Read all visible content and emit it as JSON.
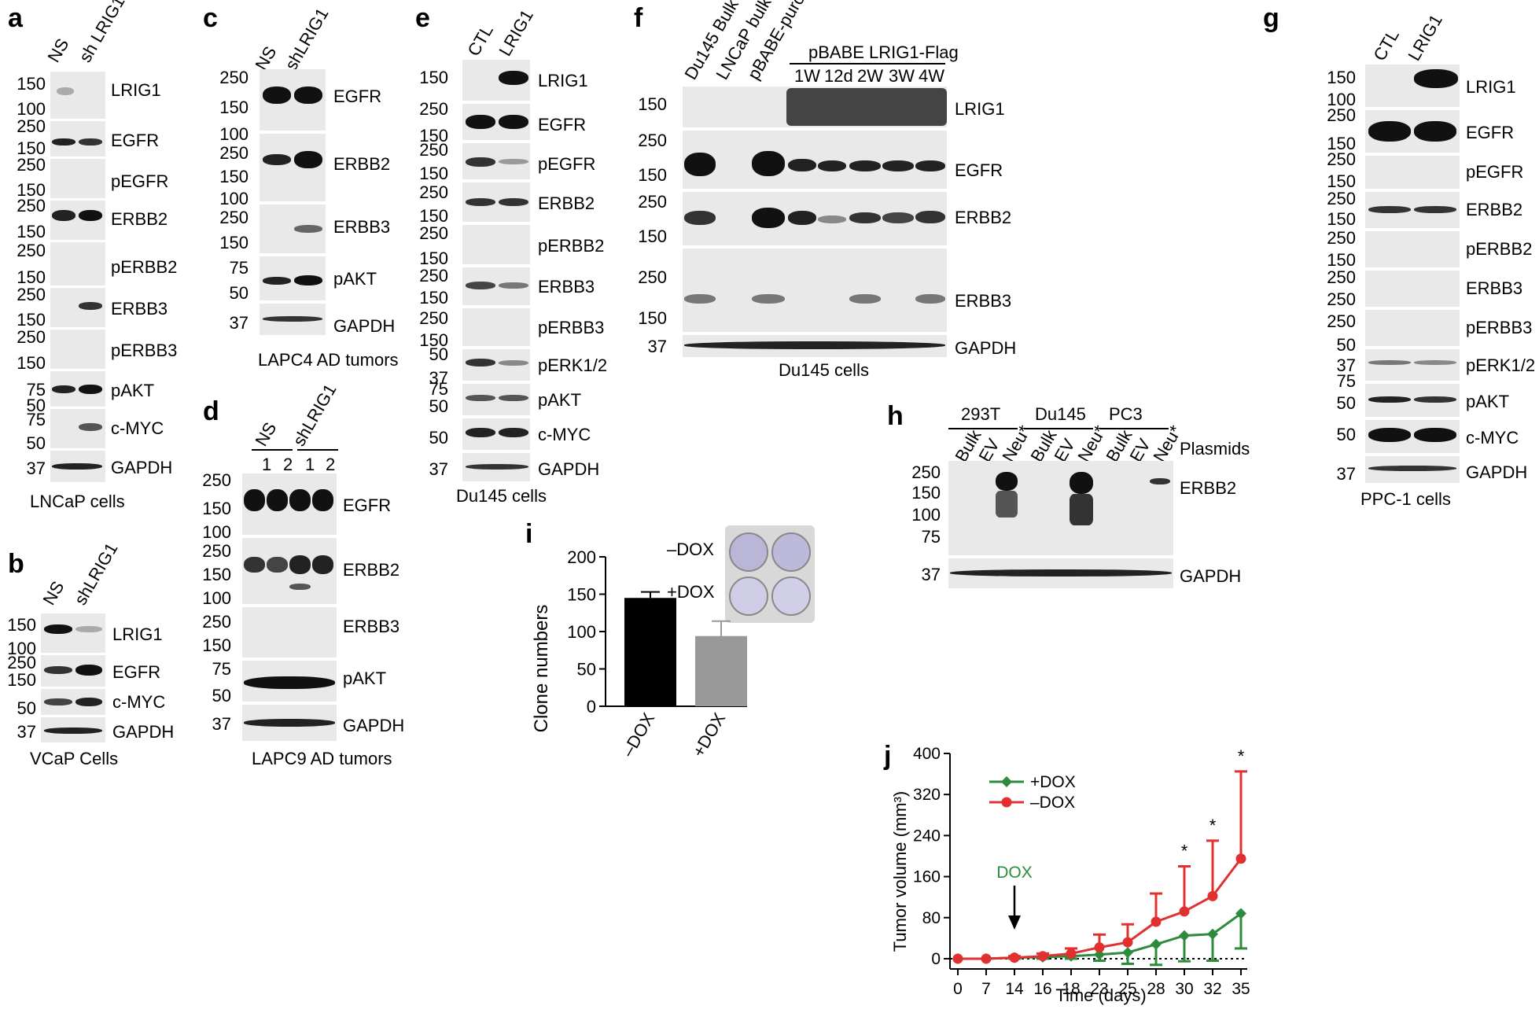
{
  "panels": {
    "a": {
      "label": "a",
      "lanes": [
        "NS",
        "sh LRIG1"
      ],
      "caption": "LNCaP cells",
      "mw": [
        "150",
        "100",
        "250",
        "150",
        "250",
        "150",
        "250",
        "150",
        "250",
        "150",
        "250",
        "150",
        "250",
        "150",
        "75",
        "50",
        "75",
        "50",
        "37"
      ],
      "proteins": [
        "LRIG1",
        "EGFR",
        "pEGFR",
        "ERBB2",
        "pERBB2",
        "ERBB3",
        "pERBB3",
        "pAKT",
        "c-MYC",
        "GAPDH"
      ]
    },
    "b": {
      "label": "b",
      "lanes": [
        "NS",
        "shLRIG1"
      ],
      "caption": "VCaP Cells",
      "mw": [
        "150",
        "100",
        "250",
        "150",
        "50",
        "37"
      ],
      "proteins": [
        "LRIG1",
        "EGFR",
        "c-MYC",
        "GAPDH"
      ]
    },
    "c": {
      "label": "c",
      "lanes": [
        "NS",
        "shLRIG1"
      ],
      "caption": "LAPC4 AD tumors",
      "mw": [
        "250",
        "150",
        "100",
        "250",
        "150",
        "100",
        "250",
        "150",
        "75",
        "50",
        "37"
      ],
      "proteins": [
        "EGFR",
        "ERBB2",
        "ERBB3",
        "pAKT",
        "GAPDH"
      ]
    },
    "d": {
      "label": "d",
      "groups": [
        "NS",
        "shLRIG1"
      ],
      "lanes": [
        "1",
        "2",
        "1",
        "2"
      ],
      "caption": "LAPC9 AD tumors",
      "mw": [
        "250",
        "150",
        "100",
        "250",
        "150",
        "100",
        "250",
        "150",
        "75",
        "50",
        "37"
      ],
      "proteins": [
        "EGFR",
        "ERBB2",
        "ERBB3",
        "pAKT",
        "GAPDH"
      ]
    },
    "e": {
      "label": "e",
      "lanes": [
        "CTL",
        "LRIG1"
      ],
      "caption": "Du145 cells",
      "mw": [
        "150",
        "250",
        "150",
        "250",
        "150",
        "250",
        "150",
        "250",
        "150",
        "250",
        "150",
        "250",
        "150",
        "50",
        "37",
        "75",
        "50",
        "50",
        "37"
      ],
      "proteins": [
        "LRIG1",
        "EGFR",
        "pEGFR",
        "ERBB2",
        "pERBB2",
        "ERBB3",
        "pERBB3",
        "pERK1/2",
        "pAKT",
        "c-MYC",
        "GAPDH"
      ]
    },
    "f": {
      "label": "f",
      "lanes": [
        "Du145 Bulk",
        "LNCaP bulk",
        "pBABE-puro"
      ],
      "group": "pBABE LRIG1-Flag",
      "group_lanes": [
        "1W",
        "12d",
        "2W",
        "3W",
        "4W"
      ],
      "caption": "Du145 cells",
      "mw": [
        "150",
        "250",
        "150",
        "250",
        "150",
        "250",
        "150",
        "37"
      ],
      "proteins": [
        "LRIG1",
        "EGFR",
        "ERBB2",
        "ERBB3",
        "GAPDH"
      ]
    },
    "g": {
      "label": "g",
      "lanes": [
        "CTL",
        "LRIG1"
      ],
      "caption": "PPC-1 cells",
      "mw": [
        "150",
        "100",
        "250",
        "150",
        "250",
        "150",
        "250",
        "150",
        "250",
        "150",
        "250",
        "50",
        "37",
        "75",
        "50",
        "50",
        "37"
      ],
      "proteins": [
        "LRIG1",
        "EGFR",
        "pEGFR",
        "ERBB2",
        "pERBB2",
        "ERBB3",
        "pERBB3",
        "pERK1/2",
        "pAKT",
        "c-MYC",
        "GAPDH"
      ]
    },
    "h": {
      "label": "h",
      "cells": [
        "293T",
        "Du145",
        "PC3"
      ],
      "lanes": [
        "Bulk",
        "EV",
        "Neu*",
        "Bulk",
        "EV",
        "Neu*",
        "Bulk",
        "EV",
        "Neu*"
      ],
      "row_label": "Plasmids",
      "mw": [
        "250",
        "150",
        "100",
        "75",
        "37"
      ],
      "proteins": [
        "ERBB2",
        "GAPDH"
      ]
    },
    "i": {
      "label": "i",
      "insert_labels": [
        "–DOX",
        "+DOX"
      ]
    },
    "j": {
      "label": "j",
      "dox_annotation": "DOX",
      "star": "*"
    }
  },
  "chart_data": [
    {
      "type": "bar",
      "panel": "i",
      "categories": [
        "–DOX",
        "+DOX"
      ],
      "values": [
        145,
        94
      ],
      "errors": [
        8,
        20
      ],
      "colors": [
        "#000000",
        "#999999"
      ],
      "ylabel": "Clone numbers",
      "ylim": [
        0,
        200
      ],
      "yticks": [
        "0",
        "50",
        "100",
        "150",
        "200"
      ]
    },
    {
      "type": "line",
      "panel": "j",
      "x": [
        0,
        7,
        14,
        16,
        18,
        23,
        25,
        28,
        30,
        32,
        35
      ],
      "xticks": [
        "0",
        "7",
        "14",
        "16",
        "18",
        "23",
        "25",
        "28",
        "30",
        "32",
        "35"
      ],
      "xlabel": "Time (days)",
      "ylabel": "Tumor volume (mm³)",
      "ylim": [
        -20,
        400
      ],
      "yticks": [
        "0",
        "80",
        "160",
        "240",
        "320",
        "400"
      ],
      "series": [
        {
          "name": "+DOX",
          "color": "#2e8b3e",
          "values": [
            0,
            0,
            2,
            3,
            5,
            8,
            12,
            28,
            45,
            48,
            88
          ],
          "errors": [
            0,
            0,
            2,
            3,
            5,
            12,
            22,
            40,
            50,
            52,
            68
          ]
        },
        {
          "name": "–DOX",
          "color": "#e03030",
          "values": [
            0,
            0,
            2,
            5,
            10,
            22,
            32,
            72,
            92,
            122,
            195
          ],
          "errors": [
            0,
            0,
            3,
            5,
            10,
            25,
            35,
            55,
            88,
            108,
            170
          ]
        }
      ],
      "significance_at": [
        30,
        32,
        35
      ],
      "legend": "top-left"
    }
  ]
}
